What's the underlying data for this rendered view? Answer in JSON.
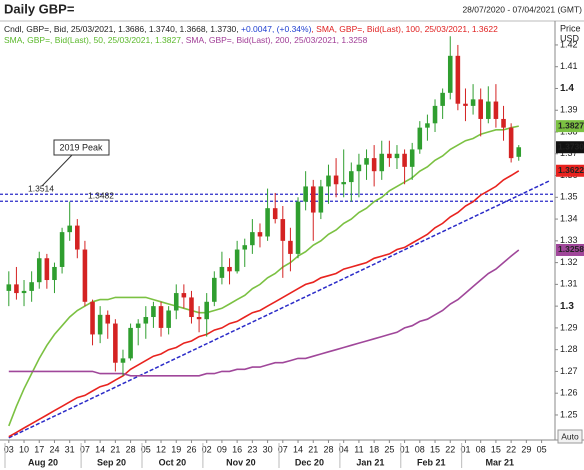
{
  "chart_data": {
    "type": "candlestick",
    "title": "Daily GBP=",
    "date_range": "28/07/2020 - 07/04/2021 (GMT)",
    "y_axis_title": [
      "Price",
      "USD"
    ],
    "button": "Auto",
    "header": [
      [
        {
          "text": "Cndl, GBP=, Bid, 25/03/2021, 1.3686, 1.3740, 1.3668, 1.3730, ",
          "color": "#222222"
        },
        {
          "text": "+0.0047, (+0.34%)",
          "color": "#1f3fd0"
        },
        {
          "text": ", SMA, GBP=, Bid(Last), 100, 25/03/2021, 1.3622",
          "color": "#e02020"
        }
      ],
      [
        {
          "text": "SMA, GBP=, Bid(Last), 50, 25/03/2021, 1.3827",
          "color": "#5ab82a"
        },
        {
          "text": ", SMA, GBP=, Bid(Last), 200, 25/03/2021, 1.3258",
          "color": "#a03c96"
        }
      ]
    ],
    "categories": [
      "03",
      null,
      "10",
      null,
      "17",
      null,
      "24",
      null,
      "31",
      null,
      "07",
      null,
      "14",
      null,
      "21",
      null,
      "28",
      null,
      "05",
      null,
      "12",
      null,
      "19",
      null,
      "26",
      null,
      "02",
      null,
      "09",
      null,
      "16",
      null,
      "23",
      null,
      "30",
      null,
      "07",
      null,
      "14",
      null,
      "21",
      null,
      "28",
      null,
      "04",
      null,
      "11",
      null,
      "18",
      null,
      "25",
      null,
      "01",
      null,
      "08",
      null,
      "15",
      null,
      "22",
      null,
      "01",
      null,
      "08",
      null,
      "15",
      null,
      "22",
      null,
      "29",
      null,
      "05",
      null
    ],
    "x_groups": [
      {
        "label": "Aug 20",
        "span": 10
      },
      {
        "label": "Sep 20",
        "span": 8
      },
      {
        "label": "Oct 20",
        "span": 8
      },
      {
        "label": "Nov 20",
        "span": 10
      },
      {
        "label": "Dec 20",
        "span": 8
      },
      {
        "label": "Jan 21",
        "span": 8
      },
      {
        "label": "Feb 21",
        "span": 8
      },
      {
        "label": "Mar 21",
        "span": 10
      }
    ],
    "candles": {
      "up_color": "#2f9e2f",
      "down_color": "#d42222",
      "open": [
        1.307,
        1.31,
        1.306,
        1.307,
        1.311,
        1.322,
        1.312,
        1.318,
        1.334,
        1.337,
        1.326,
        1.302,
        1.287,
        1.296,
        1.292,
        1.274,
        1.276,
        1.29,
        1.292,
        1.295,
        1.3,
        1.29,
        1.298,
        1.306,
        1.304,
        1.295,
        1.294,
        1.302,
        1.313,
        1.318,
        1.316,
        1.326,
        1.328,
        1.334,
        1.332,
        1.345,
        1.34,
        1.33,
        1.324,
        1.348,
        1.355,
        1.343,
        1.355,
        1.36,
        1.356,
        1.357,
        1.362,
        1.365,
        1.368,
        1.362,
        1.37,
        1.368,
        1.37,
        1.364,
        1.372,
        1.382,
        1.384,
        1.392,
        1.398,
        1.415,
        1.393,
        1.392,
        1.395,
        1.386,
        1.394,
        1.386,
        1.382,
        1.3686,
        null,
        null,
        null,
        null
      ],
      "high": [
        1.316,
        1.318,
        1.312,
        1.316,
        1.325,
        1.324,
        1.32,
        1.336,
        1.348,
        1.34,
        1.33,
        1.303,
        1.3,
        1.298,
        1.294,
        1.28,
        1.292,
        1.294,
        1.3,
        1.302,
        1.302,
        1.3,
        1.31,
        1.31,
        1.307,
        1.3,
        1.306,
        1.316,
        1.325,
        1.322,
        1.33,
        1.331,
        1.34,
        1.338,
        1.354,
        1.352,
        1.346,
        1.336,
        1.35,
        1.362,
        1.358,
        1.358,
        1.365,
        1.368,
        1.372,
        1.366,
        1.37,
        1.372,
        1.374,
        1.376,
        1.376,
        1.374,
        1.372,
        1.375,
        1.385,
        1.388,
        1.395,
        1.4,
        1.424,
        1.42,
        1.4,
        1.402,
        1.4,
        1.401,
        1.402,
        1.392,
        1.384,
        1.374,
        null,
        null,
        null,
        null
      ],
      "low": [
        1.3,
        1.303,
        1.3,
        1.302,
        1.308,
        1.308,
        1.306,
        1.315,
        1.33,
        1.322,
        1.3,
        1.282,
        1.283,
        1.285,
        1.27,
        1.268,
        1.275,
        1.282,
        1.285,
        1.29,
        1.286,
        1.287,
        1.294,
        1.299,
        1.292,
        1.288,
        1.286,
        1.3,
        1.31,
        1.31,
        1.315,
        1.318,
        1.324,
        1.327,
        1.33,
        1.338,
        1.313,
        1.316,
        1.322,
        1.344,
        1.33,
        1.34,
        1.347,
        1.35,
        1.35,
        1.348,
        1.35,
        1.358,
        1.355,
        1.358,
        1.364,
        1.363,
        1.356,
        1.358,
        1.37,
        1.376,
        1.38,
        1.386,
        1.395,
        1.39,
        1.385,
        1.388,
        1.378,
        1.384,
        1.382,
        1.376,
        1.366,
        1.3668,
        null,
        null,
        null,
        null
      ],
      "close": [
        1.31,
        1.306,
        1.307,
        1.311,
        1.322,
        1.312,
        1.318,
        1.334,
        1.337,
        1.326,
        1.302,
        1.287,
        1.296,
        1.292,
        1.274,
        1.276,
        1.29,
        1.292,
        1.295,
        1.3,
        1.29,
        1.298,
        1.306,
        1.304,
        1.295,
        1.294,
        1.302,
        1.313,
        1.318,
        1.316,
        1.326,
        1.328,
        1.334,
        1.332,
        1.345,
        1.34,
        1.33,
        1.324,
        1.348,
        1.355,
        1.343,
        1.355,
        1.36,
        1.356,
        1.357,
        1.362,
        1.365,
        1.368,
        1.362,
        1.37,
        1.368,
        1.37,
        1.364,
        1.372,
        1.382,
        1.384,
        1.392,
        1.398,
        1.415,
        1.393,
        1.392,
        1.395,
        1.386,
        1.394,
        1.386,
        1.382,
        1.368,
        1.373,
        null,
        null,
        null,
        null
      ]
    },
    "series": [
      {
        "color": "#7bc142",
        "values": [
          1.245,
          1.254,
          1.262,
          1.269,
          1.276,
          1.282,
          1.287,
          1.291,
          1.295,
          1.298,
          1.3,
          1.302,
          1.303,
          1.303,
          1.304,
          1.304,
          1.304,
          1.304,
          1.304,
          1.303,
          1.302,
          1.301,
          1.3,
          1.299,
          1.298,
          1.297,
          1.297,
          1.298,
          1.299,
          1.301,
          1.303,
          1.305,
          1.308,
          1.31,
          1.313,
          1.315,
          1.318,
          1.32,
          1.323,
          1.325,
          1.328,
          1.33,
          1.333,
          1.335,
          1.338,
          1.34,
          1.343,
          1.345,
          1.348,
          1.35,
          1.353,
          1.355,
          1.357,
          1.359,
          1.362,
          1.364,
          1.367,
          1.369,
          1.372,
          1.374,
          1.376,
          1.377,
          1.379,
          1.38,
          1.381,
          1.381,
          1.382,
          1.3827,
          null,
          null,
          null,
          null
        ]
      },
      {
        "color": "#e8231f",
        "values": [
          1.24,
          1.242,
          1.244,
          1.246,
          1.248,
          1.25,
          1.252,
          1.254,
          1.256,
          1.258,
          1.259,
          1.261,
          1.263,
          1.264,
          1.266,
          1.268,
          1.271,
          1.273,
          1.275,
          1.277,
          1.278,
          1.28,
          1.281,
          1.283,
          1.284,
          1.286,
          1.287,
          1.289,
          1.29,
          1.292,
          1.293,
          1.295,
          1.297,
          1.298,
          1.3,
          1.302,
          1.304,
          1.306,
          1.308,
          1.31,
          1.311,
          1.313,
          1.314,
          1.315,
          1.317,
          1.318,
          1.319,
          1.32,
          1.322,
          1.323,
          1.324,
          1.326,
          1.327,
          1.329,
          1.331,
          1.333,
          1.336,
          1.338,
          1.341,
          1.343,
          1.346,
          1.348,
          1.351,
          1.353,
          1.355,
          1.358,
          1.36,
          1.3622,
          null,
          null,
          null,
          null
        ]
      },
      {
        "color": "#a0479a",
        "values": [
          1.27,
          1.27,
          1.27,
          1.27,
          1.27,
          1.27,
          1.27,
          1.27,
          1.27,
          1.27,
          1.27,
          1.27,
          1.269,
          1.269,
          1.269,
          1.269,
          1.268,
          1.268,
          1.268,
          1.268,
          1.268,
          1.268,
          1.268,
          1.268,
          1.268,
          1.268,
          1.269,
          1.269,
          1.27,
          1.27,
          1.271,
          1.271,
          1.272,
          1.272,
          1.273,
          1.274,
          1.274,
          1.275,
          1.276,
          1.276,
          1.277,
          1.278,
          1.279,
          1.28,
          1.281,
          1.282,
          1.283,
          1.284,
          1.285,
          1.286,
          1.287,
          1.288,
          1.29,
          1.291,
          1.293,
          1.294,
          1.296,
          1.298,
          1.301,
          1.303,
          1.306,
          1.309,
          1.312,
          1.315,
          1.317,
          1.32,
          1.323,
          1.3258,
          null,
          null,
          null,
          null
        ]
      }
    ],
    "trendline": {
      "color": "#2b2bc8",
      "values": [
        1.2395,
        1.3575
      ]
    },
    "levels": {
      "color": "#2b2bc8",
      "values": [
        1.3514,
        1.3482
      ]
    },
    "annotation": "2019 Peak",
    "price_tags": [
      {
        "value": 1.3827,
        "color": "#7bc142"
      },
      {
        "value": 1.373,
        "label": "1.3730",
        "color": "#111111"
      },
      {
        "value": 1.3622,
        "color": "#e8231f"
      },
      {
        "value": 1.3258,
        "color": "#a0479a"
      }
    ],
    "ylim": [
      1.2385,
      1.431
    ],
    "yticks": [
      1.25,
      1.26,
      1.27,
      1.28,
      1.29,
      1.3,
      1.31,
      1.32,
      1.33,
      1.34,
      1.35,
      1.36,
      1.37,
      1.38,
      1.39,
      1.4,
      1.41,
      1.42
    ]
  }
}
